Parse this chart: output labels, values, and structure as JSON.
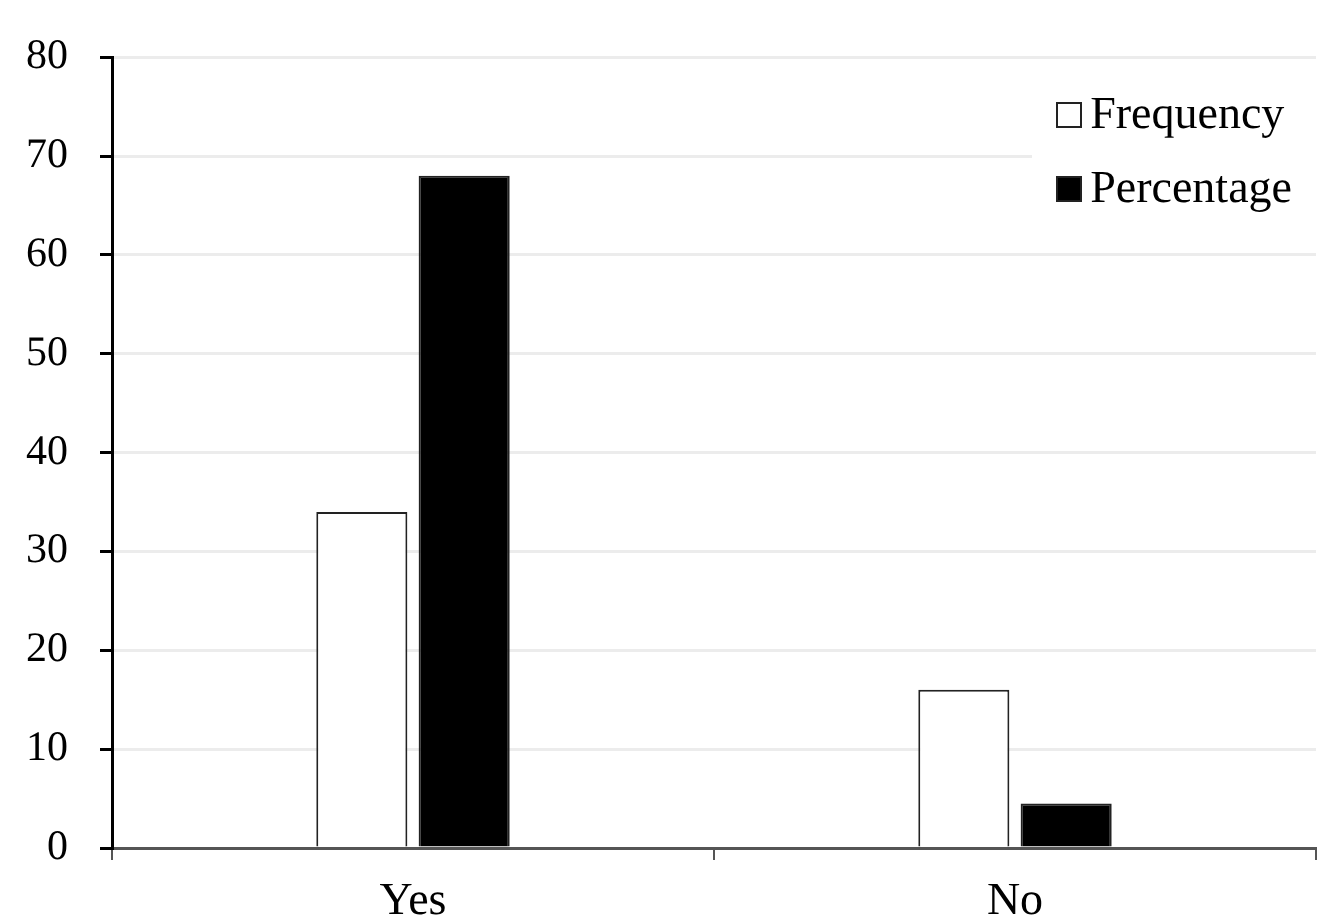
{
  "chart_data": {
    "type": "bar",
    "categories": [
      "Yes",
      "No"
    ],
    "series": [
      {
        "name": "Frequency",
        "color": "#ffffff",
        "values": [
          34,
          16
        ]
      },
      {
        "name": "Percentage",
        "color": "#000000",
        "values": [
          68,
          4.5
        ]
      }
    ],
    "ylim": [
      0,
      80
    ],
    "yticks": [
      0,
      10,
      20,
      30,
      40,
      50,
      60,
      70,
      80
    ],
    "grid": "y",
    "legend": "top right"
  }
}
